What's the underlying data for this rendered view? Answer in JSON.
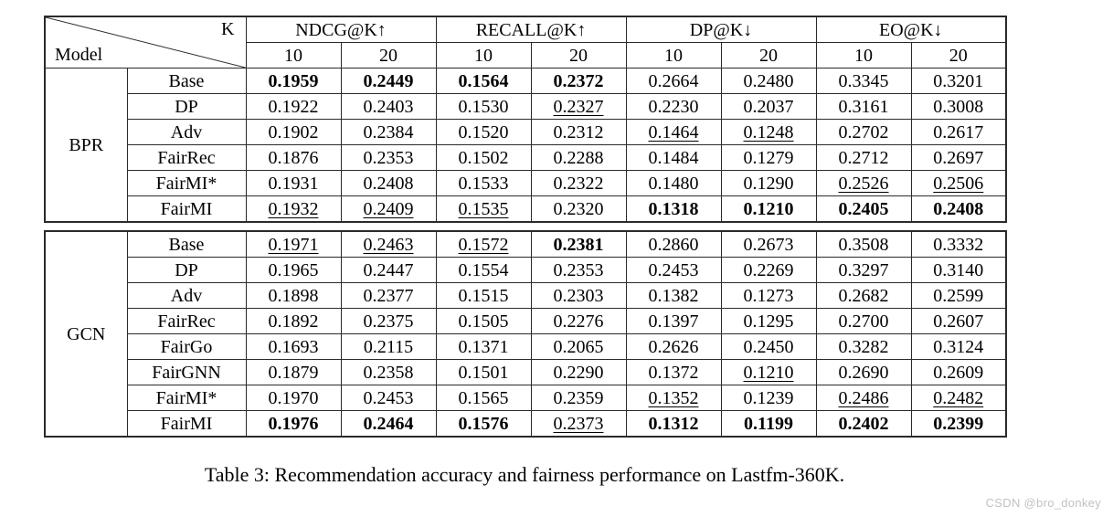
{
  "header": {
    "k_label": "K",
    "model_label": "Model",
    "metric_groups": [
      "NDCG@K↑",
      "RECALL@K↑",
      "DP@K↓",
      "EO@K↓"
    ],
    "k_columns": [
      "10",
      "20",
      "10",
      "20",
      "10",
      "20",
      "10",
      "20"
    ]
  },
  "sections": [
    {
      "group": "BPR",
      "rows": [
        {
          "model": "Base",
          "values": [
            "0.1959",
            "0.2449",
            "0.1564",
            "0.2372",
            "0.2664",
            "0.2480",
            "0.3345",
            "0.3201"
          ],
          "styles": [
            "b",
            "b",
            "b",
            "b",
            "n",
            "n",
            "n",
            "n"
          ]
        },
        {
          "model": "DP",
          "values": [
            "0.1922",
            "0.2403",
            "0.1530",
            "0.2327",
            "0.2230",
            "0.2037",
            "0.3161",
            "0.3008"
          ],
          "styles": [
            "n",
            "n",
            "n",
            "u",
            "n",
            "n",
            "n",
            "n"
          ]
        },
        {
          "model": "Adv",
          "values": [
            "0.1902",
            "0.2384",
            "0.1520",
            "0.2312",
            "0.1464",
            "0.1248",
            "0.2702",
            "0.2617"
          ],
          "styles": [
            "n",
            "n",
            "n",
            "n",
            "u",
            "u",
            "n",
            "n"
          ]
        },
        {
          "model": "FairRec",
          "values": [
            "0.1876",
            "0.2353",
            "0.1502",
            "0.2288",
            "0.1484",
            "0.1279",
            "0.2712",
            "0.2697"
          ],
          "styles": [
            "n",
            "n",
            "n",
            "n",
            "n",
            "n",
            "n",
            "n"
          ]
        },
        {
          "model": "FairMI*",
          "values": [
            "0.1931",
            "0.2408",
            "0.1533",
            "0.2322",
            "0.1480",
            "0.1290",
            "0.2526",
            "0.2506"
          ],
          "styles": [
            "n",
            "n",
            "n",
            "n",
            "n",
            "n",
            "u",
            "u"
          ]
        },
        {
          "model": "FairMI",
          "values": [
            "0.1932",
            "0.2409",
            "0.1535",
            "0.2320",
            "0.1318",
            "0.1210",
            "0.2405",
            "0.2408"
          ],
          "styles": [
            "u",
            "u",
            "u",
            "n",
            "b",
            "b",
            "b",
            "b"
          ]
        }
      ]
    },
    {
      "group": "GCN",
      "rows": [
        {
          "model": "Base",
          "values": [
            "0.1971",
            "0.2463",
            "0.1572",
            "0.2381",
            "0.2860",
            "0.2673",
            "0.3508",
            "0.3332"
          ],
          "styles": [
            "u",
            "u",
            "u",
            "b",
            "n",
            "n",
            "n",
            "n"
          ]
        },
        {
          "model": "DP",
          "values": [
            "0.1965",
            "0.2447",
            "0.1554",
            "0.2353",
            "0.2453",
            "0.2269",
            "0.3297",
            "0.3140"
          ],
          "styles": [
            "n",
            "n",
            "n",
            "n",
            "n",
            "n",
            "n",
            "n"
          ]
        },
        {
          "model": "Adv",
          "values": [
            "0.1898",
            "0.2377",
            "0.1515",
            "0.2303",
            "0.1382",
            "0.1273",
            "0.2682",
            "0.2599"
          ],
          "styles": [
            "n",
            "n",
            "n",
            "n",
            "n",
            "n",
            "n",
            "n"
          ]
        },
        {
          "model": "FairRec",
          "values": [
            "0.1892",
            "0.2375",
            "0.1505",
            "0.2276",
            "0.1397",
            "0.1295",
            "0.2700",
            "0.2607"
          ],
          "styles": [
            "n",
            "n",
            "n",
            "n",
            "n",
            "n",
            "n",
            "n"
          ]
        },
        {
          "model": "FairGo",
          "values": [
            "0.1693",
            "0.2115",
            "0.1371",
            "0.2065",
            "0.2626",
            "0.2450",
            "0.3282",
            "0.3124"
          ],
          "styles": [
            "n",
            "n",
            "n",
            "n",
            "n",
            "n",
            "n",
            "n"
          ]
        },
        {
          "model": "FairGNN",
          "values": [
            "0.1879",
            "0.2358",
            "0.1501",
            "0.2290",
            "0.1372",
            "0.1210",
            "0.2690",
            "0.2609"
          ],
          "styles": [
            "n",
            "n",
            "n",
            "n",
            "n",
            "u",
            "n",
            "n"
          ]
        },
        {
          "model": "FairMI*",
          "values": [
            "0.1970",
            "0.2453",
            "0.1565",
            "0.2359",
            "0.1352",
            "0.1239",
            "0.2486",
            "0.2482"
          ],
          "styles": [
            "n",
            "n",
            "n",
            "n",
            "u",
            "n",
            "u",
            "u"
          ]
        },
        {
          "model": "FairMI",
          "values": [
            "0.1976",
            "0.2464",
            "0.1576",
            "0.2373",
            "0.1312",
            "0.1199",
            "0.2402",
            "0.2399"
          ],
          "styles": [
            "b",
            "b",
            "b",
            "u",
            "b",
            "b",
            "b",
            "b"
          ]
        }
      ]
    }
  ],
  "caption": "Table 3: Recommendation accuracy and fairness performance on Lastfm-360K.",
  "watermark": "CSDN @bro_donkey",
  "colors": {
    "border": "#2a2a2a",
    "text": "#000000",
    "watermark": "#c2c2c2",
    "background": "#ffffff"
  }
}
